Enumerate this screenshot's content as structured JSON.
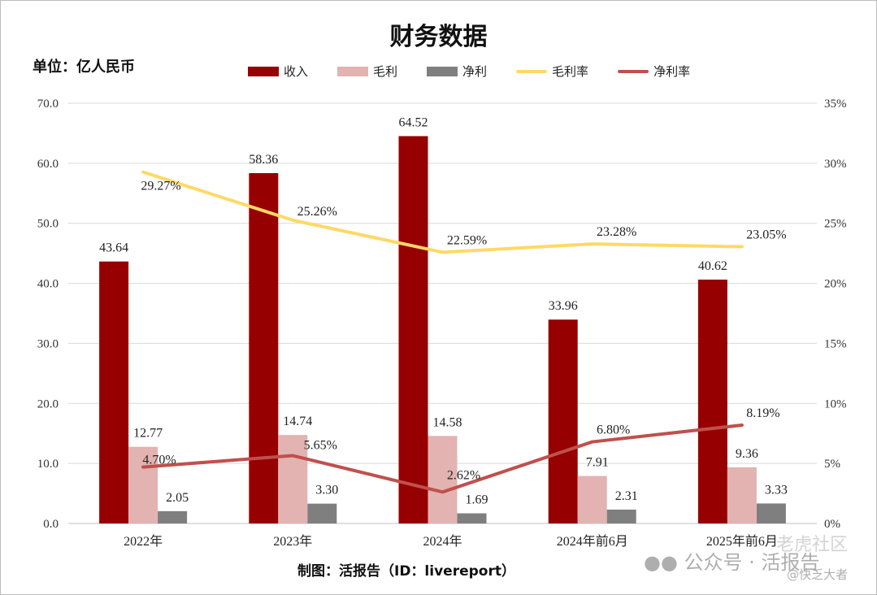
{
  "title": "财务数据",
  "unit_label": "单位：亿人民币",
  "footer": "制图：活报告（ID：livereport）",
  "watermark": {
    "account": "公众号 · 活报告",
    "site": "老虎社区",
    "user": "@快乏大者"
  },
  "colors": {
    "revenue": "#960000",
    "gross_profit": "#e2b3b1",
    "net_profit": "#7f7f7f",
    "gross_margin": "#ffd966",
    "net_margin": "#c0504d",
    "gridline": "#d9d9d9"
  },
  "chart_data": {
    "type": "bar",
    "categories": [
      "2022年",
      "2023年",
      "2024年",
      "2024年前6月",
      "2025年前6月"
    ],
    "series": [
      {
        "name": "收入",
        "type": "bar",
        "axis": "left",
        "values": [
          43.64,
          58.36,
          64.52,
          33.96,
          40.62
        ],
        "labels": [
          "43.64",
          "58.36",
          "64.52",
          "33.96",
          "40.62"
        ]
      },
      {
        "name": "毛利",
        "type": "bar",
        "axis": "left",
        "values": [
          12.77,
          14.74,
          14.58,
          7.91,
          9.36
        ],
        "labels": [
          "12.77",
          "14.74",
          "14.58",
          "7.91",
          "9.36"
        ]
      },
      {
        "name": "净利",
        "type": "bar",
        "axis": "left",
        "values": [
          2.05,
          3.3,
          1.69,
          2.31,
          3.33
        ],
        "labels": [
          "2.05",
          "3.30",
          "1.69",
          "2.31",
          "3.33"
        ]
      },
      {
        "name": "毛利率",
        "type": "line",
        "axis": "right",
        "values": [
          29.27,
          25.26,
          22.59,
          23.28,
          23.05
        ],
        "labels": [
          "29.27%",
          "25.26%",
          "22.59%",
          "23.28%",
          "23.05%"
        ]
      },
      {
        "name": "净利率",
        "type": "line",
        "axis": "right",
        "values": [
          4.7,
          5.65,
          2.62,
          6.8,
          8.19
        ],
        "labels": [
          "4.70%",
          "5.65%",
          "2.62%",
          "6.80%",
          "8.19%"
        ]
      }
    ],
    "y_left": {
      "min": 0,
      "max": 70,
      "ticks": [
        "0.0",
        "10.0",
        "20.0",
        "30.0",
        "40.0",
        "50.0",
        "60.0",
        "70.0"
      ]
    },
    "y_right": {
      "min": 0,
      "max": 35,
      "ticks": [
        "0%",
        "5%",
        "10%",
        "15%",
        "20%",
        "25%",
        "30%",
        "35%"
      ]
    },
    "grid": true,
    "legend_position": "top"
  }
}
